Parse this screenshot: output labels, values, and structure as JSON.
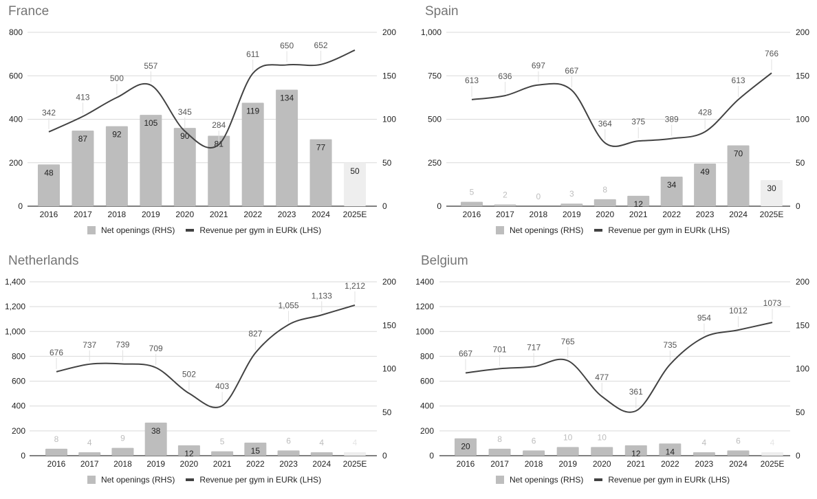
{
  "legend": {
    "bars": "Net openings (RHS)",
    "line": "Revenue per gym in EURk (LHS)"
  },
  "colors": {
    "bar": "#bdbdbd",
    "bar_estimate": "#eeeeee",
    "line": "#424242",
    "grid": "#d9d9d9"
  },
  "chart_data": [
    {
      "type": "bar+line",
      "title": "France",
      "categories": [
        "2016",
        "2017",
        "2018",
        "2019",
        "2020",
        "2021",
        "2022",
        "2023",
        "2024",
        "2025E"
      ],
      "left_ticks": [
        "0",
        "200",
        "400",
        "600",
        "800"
      ],
      "ylim_left": [
        0,
        800
      ],
      "right_ticks": [
        "0",
        "50",
        "100",
        "150",
        "200"
      ],
      "ylim_right": [
        0,
        200
      ],
      "series": [
        {
          "name": "Net openings (RHS)",
          "kind": "bar",
          "axis": "right",
          "values": [
            48,
            87,
            92,
            105,
            90,
            81,
            119,
            134,
            77,
            50
          ]
        },
        {
          "name": "Revenue per gym in EURk (LHS)",
          "kind": "line",
          "axis": "left",
          "values": [
            342,
            413,
            500,
            557,
            345,
            284,
            611,
            650,
            652,
            718
          ],
          "labels": [
            "342",
            "413",
            "500",
            "557",
            "345",
            "284",
            "611",
            "650",
            "652",
            null
          ]
        }
      ]
    },
    {
      "type": "bar+line",
      "title": "Spain",
      "categories": [
        "2016",
        "2017",
        "2018",
        "2019",
        "2020",
        "2021",
        "2022",
        "2023",
        "2024",
        "2025E"
      ],
      "left_ticks": [
        "0",
        "250",
        "500",
        "750",
        "1,000"
      ],
      "ylim_left": [
        0,
        1000
      ],
      "right_ticks": [
        "0",
        "50",
        "100",
        "150",
        "200"
      ],
      "ylim_right": [
        0,
        200
      ],
      "series": [
        {
          "name": "Net openings (RHS)",
          "kind": "bar",
          "axis": "right",
          "values": [
            5,
            2,
            0,
            3,
            8,
            12,
            34,
            49,
            70,
            30
          ]
        },
        {
          "name": "Revenue per gym in EURk (LHS)",
          "kind": "line",
          "axis": "left",
          "values": [
            613,
            636,
            697,
            667,
            364,
            375,
            389,
            428,
            613,
            766
          ],
          "labels": [
            "613",
            "636",
            "697",
            "667",
            "364",
            "375",
            "389",
            "428",
            "613",
            "766"
          ]
        }
      ]
    },
    {
      "type": "bar+line",
      "title": "Netherlands",
      "categories": [
        "2016",
        "2017",
        "2018",
        "2019",
        "2020",
        "2021",
        "2022",
        "2023",
        "2024",
        "2025E"
      ],
      "left_ticks": [
        "0",
        "200",
        "400",
        "600",
        "800",
        "1,000",
        "1,200",
        "1,400"
      ],
      "ylim_left": [
        0,
        1400
      ],
      "right_ticks": [
        "0",
        "50",
        "100",
        "150",
        "200"
      ],
      "ylim_right": [
        0,
        200
      ],
      "series": [
        {
          "name": "Net openings (RHS)",
          "kind": "bar",
          "axis": "right",
          "values": [
            8,
            4,
            9,
            38,
            12,
            5,
            15,
            6,
            4,
            4
          ]
        },
        {
          "name": "Revenue per gym in EURk (LHS)",
          "kind": "line",
          "axis": "left",
          "values": [
            676,
            737,
            739,
            709,
            502,
            403,
            827,
            1055,
            1133,
            1212
          ],
          "labels": [
            "676",
            "737",
            "739",
            "709",
            "502",
            "403",
            "827",
            "1,055",
            "1,133",
            "1,212"
          ]
        }
      ]
    },
    {
      "type": "bar+line",
      "title": "Belgium",
      "categories": [
        "2016",
        "2017",
        "2018",
        "2019",
        "2020",
        "2021",
        "2022",
        "2023",
        "2024",
        "2025E"
      ],
      "left_ticks": [
        "0",
        "200",
        "400",
        "600",
        "800",
        "1000",
        "1200",
        "1400"
      ],
      "ylim_left": [
        0,
        1400
      ],
      "right_ticks": [
        "0",
        "50",
        "100",
        "150",
        "200"
      ],
      "ylim_right": [
        0,
        200
      ],
      "series": [
        {
          "name": "Net openings (RHS)",
          "kind": "bar",
          "axis": "right",
          "values": [
            20,
            8,
            6,
            10,
            10,
            12,
            14,
            4,
            6,
            4
          ]
        },
        {
          "name": "Revenue per gym in EURk (LHS)",
          "kind": "line",
          "axis": "left",
          "values": [
            667,
            701,
            717,
            765,
            477,
            361,
            735,
            954,
            1012,
            1073
          ],
          "labels": [
            "667",
            "701",
            "717",
            "765",
            "477",
            "361",
            "735",
            "954",
            "1012",
            "1073"
          ]
        }
      ]
    }
  ]
}
